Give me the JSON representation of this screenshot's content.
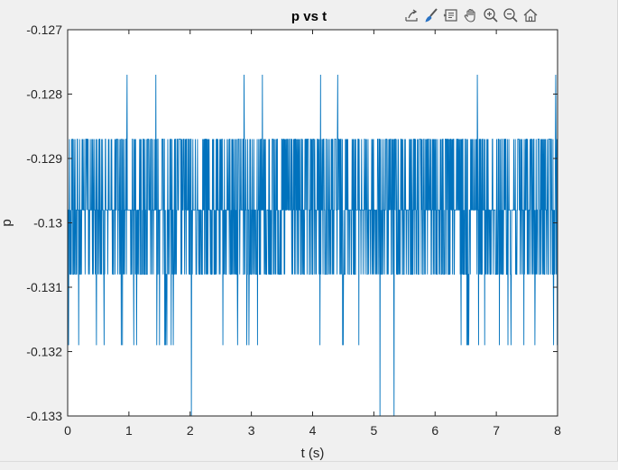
{
  "toolbar": {
    "icons": [
      "export-icon",
      "brush-icon",
      "data-tips-icon",
      "pan-hand-icon",
      "zoom-in-icon",
      "zoom-out-icon",
      "home-icon"
    ]
  },
  "colors": {
    "line": "#0072bd",
    "axis": "#262626",
    "background": "#ffffff",
    "figure": "#f0f0f0"
  },
  "chart_data": {
    "type": "line",
    "title": "p vs t",
    "xlabel": "t (s)",
    "ylabel": "p",
    "xlim": [
      0,
      8
    ],
    "ylim": [
      -0.133,
      -0.127
    ],
    "xticks": [
      0,
      1,
      2,
      3,
      4,
      5,
      6,
      7,
      8
    ],
    "yticks": [
      -0.127,
      -0.128,
      -0.129,
      -0.13,
      -0.131,
      -0.132,
      -0.133
    ],
    "ytick_labels": [
      "-0.127",
      "-0.128",
      "-0.129",
      "-0.13",
      "-0.131",
      "-0.132",
      "-0.133"
    ],
    "grid": false,
    "levels": [
      -0.1277,
      -0.1287,
      -0.1298,
      -0.1308,
      -0.1319,
      -0.133
    ],
    "series": [
      {
        "color": "#0072bd",
        "sample_interval": 0.005,
        "spikes_high": [
          0.97,
          1.44,
          2.88,
          3.18,
          4.13,
          4.41,
          6.69,
          7.97
        ],
        "dips_low": [
          2.02,
          5.1,
          5.33
        ]
      }
    ]
  }
}
